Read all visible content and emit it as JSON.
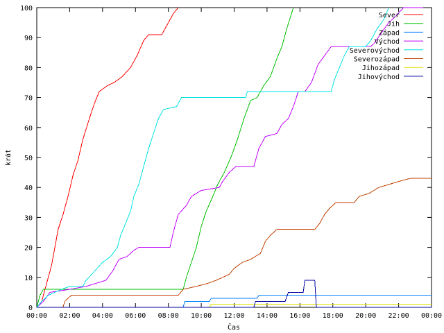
{
  "chart_data": {
    "type": "line",
    "title": "",
    "xlabel": "Čas",
    "ylabel": "krát",
    "xlim": [
      0,
      24
    ],
    "ylim": [
      0,
      100
    ],
    "x_ticks": [
      {
        "value": 0,
        "label": "00:00"
      },
      {
        "value": 2,
        "label": "02:00"
      },
      {
        "value": 4,
        "label": "04:00"
      },
      {
        "value": 6,
        "label": "06:00"
      },
      {
        "value": 8,
        "label": "08:00"
      },
      {
        "value": 10,
        "label": "10:00"
      },
      {
        "value": 12,
        "label": "12:00"
      },
      {
        "value": 14,
        "label": "14:00"
      },
      {
        "value": 16,
        "label": "16:00"
      },
      {
        "value": 18,
        "label": "18:00"
      },
      {
        "value": 20,
        "label": "20:00"
      },
      {
        "value": 22,
        "label": "22:00"
      },
      {
        "value": 24,
        "label": "00:00"
      }
    ],
    "y_ticks": [
      0,
      10,
      20,
      30,
      40,
      50,
      60,
      70,
      80,
      90,
      100
    ],
    "grid": false,
    "legend_position": "top-right",
    "series": [
      {
        "name": "Sever",
        "color": "#ff0000",
        "points": [
          [
            0,
            0
          ],
          [
            0.3,
            2
          ],
          [
            0.5,
            6
          ],
          [
            0.7,
            10
          ],
          [
            0.9,
            14
          ],
          [
            1.1,
            20
          ],
          [
            1.3,
            26
          ],
          [
            1.6,
            31
          ],
          [
            1.9,
            37
          ],
          [
            2.2,
            44
          ],
          [
            2.5,
            49
          ],
          [
            2.8,
            56
          ],
          [
            3.2,
            63
          ],
          [
            3.5,
            68
          ],
          [
            3.8,
            72
          ],
          [
            4.3,
            74
          ],
          [
            4.7,
            75
          ],
          [
            5.2,
            77
          ],
          [
            5.7,
            80
          ],
          [
            6.1,
            84
          ],
          [
            6.5,
            89
          ],
          [
            6.8,
            91
          ],
          [
            7.6,
            91
          ],
          [
            8.0,
            95
          ],
          [
            8.3,
            98
          ],
          [
            8.6,
            100
          ]
        ]
      },
      {
        "name": "Jih",
        "color": "#00c000",
        "points": [
          [
            0,
            0
          ],
          [
            0.2,
            4
          ],
          [
            0.4,
            6
          ],
          [
            1.0,
            6
          ],
          [
            8.9,
            6
          ],
          [
            9.1,
            10
          ],
          [
            9.4,
            15
          ],
          [
            9.7,
            20
          ],
          [
            10.0,
            27
          ],
          [
            10.3,
            32
          ],
          [
            10.7,
            37
          ],
          [
            11.0,
            41
          ],
          [
            11.4,
            45
          ],
          [
            11.8,
            50
          ],
          [
            12.2,
            56
          ],
          [
            12.6,
            63
          ],
          [
            13.0,
            69
          ],
          [
            13.4,
            70
          ],
          [
            13.8,
            74
          ],
          [
            14.2,
            77
          ],
          [
            14.6,
            83
          ],
          [
            14.9,
            87
          ],
          [
            15.2,
            93
          ],
          [
            15.6,
            100
          ]
        ]
      },
      {
        "name": "Západ",
        "color": "#0080ff",
        "points": [
          [
            0,
            0
          ],
          [
            8.9,
            0
          ],
          [
            9.0,
            2
          ],
          [
            10.5,
            2
          ],
          [
            10.6,
            3
          ],
          [
            13.4,
            3
          ],
          [
            13.5,
            4
          ],
          [
            24,
            4
          ]
        ]
      },
      {
        "name": "Východ",
        "color": "#c000ff",
        "points": [
          [
            0,
            0
          ],
          [
            0.4,
            2
          ],
          [
            0.8,
            5
          ],
          [
            2.0,
            6
          ],
          [
            3.0,
            7
          ],
          [
            4.2,
            9
          ],
          [
            4.6,
            12
          ],
          [
            5.0,
            16
          ],
          [
            5.5,
            17
          ],
          [
            5.9,
            19
          ],
          [
            6.2,
            20
          ],
          [
            8.1,
            20
          ],
          [
            8.3,
            25
          ],
          [
            8.6,
            31
          ],
          [
            9.1,
            34
          ],
          [
            9.4,
            37
          ],
          [
            10.0,
            39
          ],
          [
            11.1,
            40
          ],
          [
            11.3,
            42
          ],
          [
            11.7,
            45
          ],
          [
            12.1,
            47
          ],
          [
            13.2,
            47
          ],
          [
            13.5,
            53
          ],
          [
            13.9,
            57
          ],
          [
            14.6,
            58
          ],
          [
            14.9,
            61
          ],
          [
            15.3,
            63
          ],
          [
            15.6,
            67
          ],
          [
            15.9,
            72
          ],
          [
            16.3,
            72
          ],
          [
            16.7,
            75
          ],
          [
            17.1,
            81
          ],
          [
            17.5,
            84
          ],
          [
            17.9,
            87
          ],
          [
            20.3,
            87
          ],
          [
            20.5,
            88
          ],
          [
            21.0,
            92
          ],
          [
            21.4,
            95
          ],
          [
            21.8,
            97
          ],
          [
            22.3,
            100
          ],
          [
            23.5,
            100
          ]
        ]
      },
      {
        "name": "Severovýchod",
        "color": "#00e0e0",
        "points": [
          [
            0,
            0
          ],
          [
            0.3,
            2
          ],
          [
            0.7,
            4
          ],
          [
            1.1,
            5
          ],
          [
            1.5,
            6
          ],
          [
            2.0,
            7
          ],
          [
            2.8,
            7
          ],
          [
            3.0,
            9
          ],
          [
            3.5,
            12
          ],
          [
            4.0,
            15
          ],
          [
            4.5,
            17
          ],
          [
            4.9,
            20
          ],
          [
            5.1,
            24
          ],
          [
            5.4,
            28
          ],
          [
            5.7,
            32
          ],
          [
            5.9,
            37
          ],
          [
            6.2,
            41
          ],
          [
            6.5,
            47
          ],
          [
            6.8,
            53
          ],
          [
            7.1,
            58
          ],
          [
            7.4,
            63
          ],
          [
            7.7,
            66
          ],
          [
            8.5,
            67
          ],
          [
            8.8,
            70
          ],
          [
            12.7,
            70
          ],
          [
            12.8,
            72
          ],
          [
            17.9,
            72
          ],
          [
            18.1,
            76
          ],
          [
            18.4,
            80
          ],
          [
            18.7,
            84
          ],
          [
            19.0,
            87
          ],
          [
            20.0,
            87
          ],
          [
            20.3,
            89
          ],
          [
            20.7,
            93
          ],
          [
            21.1,
            96
          ],
          [
            21.4,
            100
          ]
        ]
      },
      {
        "name": "Severozápad",
        "color": "#c04000",
        "points": [
          [
            0,
            0
          ],
          [
            1.6,
            0
          ],
          [
            1.7,
            2
          ],
          [
            2.1,
            4
          ],
          [
            8.6,
            4
          ],
          [
            8.9,
            6
          ],
          [
            9.7,
            7
          ],
          [
            10.4,
            8
          ],
          [
            10.9,
            9
          ],
          [
            11.3,
            10
          ],
          [
            11.7,
            11
          ],
          [
            12.0,
            13
          ],
          [
            12.5,
            15
          ],
          [
            13.0,
            16
          ],
          [
            13.6,
            18
          ],
          [
            13.9,
            22
          ],
          [
            14.2,
            24
          ],
          [
            14.6,
            26
          ],
          [
            16.9,
            26
          ],
          [
            17.2,
            28
          ],
          [
            17.5,
            31
          ],
          [
            17.8,
            33
          ],
          [
            18.2,
            35
          ],
          [
            19.3,
            35
          ],
          [
            19.6,
            37
          ],
          [
            20.2,
            38
          ],
          [
            20.8,
            40
          ],
          [
            21.4,
            41
          ],
          [
            22.0,
            42
          ],
          [
            22.7,
            43
          ],
          [
            24,
            43
          ]
        ]
      },
      {
        "name": "Jihozápad",
        "color": "#e0e000",
        "points": [
          [
            0,
            0
          ],
          [
            10.5,
            0
          ],
          [
            10.6,
            1
          ],
          [
            24,
            1
          ]
        ]
      },
      {
        "name": "Jihovýchod",
        "color": "#0000a0",
        "points": [
          [
            0,
            0
          ],
          [
            13.2,
            0
          ],
          [
            13.3,
            2
          ],
          [
            15.1,
            2
          ],
          [
            15.3,
            5
          ],
          [
            16.2,
            5
          ],
          [
            16.3,
            9
          ],
          [
            16.9,
            9
          ],
          [
            17.0,
            0
          ],
          [
            24,
            0
          ]
        ]
      }
    ]
  }
}
